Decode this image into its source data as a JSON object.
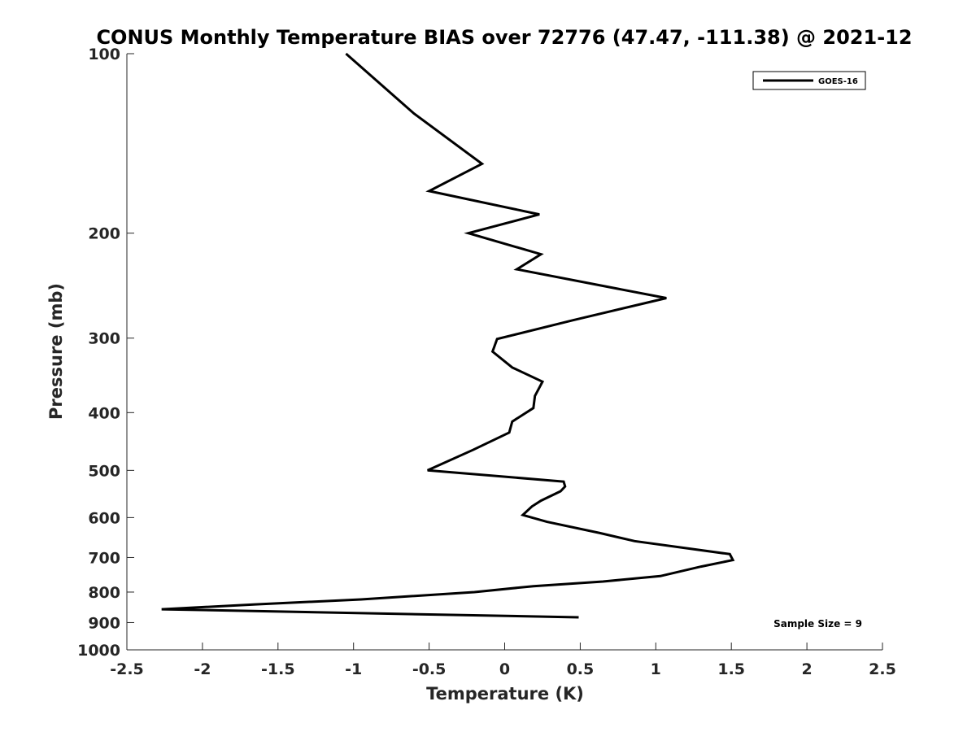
{
  "chart_data": {
    "type": "line",
    "title": "CONUS Monthly Temperature BIAS over 72776 (47.47, -111.38) @ 2021-12",
    "xlabel": "Temperature (K)",
    "ylabel": "Pressure (mb)",
    "xlim": [
      -2.5,
      2.5
    ],
    "ylim": [
      100,
      1000
    ],
    "y_scale": "log",
    "y_reversed": true,
    "x_ticks": [
      "-2.5",
      "-2",
      "-1.5",
      "-1",
      "-0.5",
      "0",
      "0.5",
      "1",
      "1.5",
      "2",
      "2.5"
    ],
    "y_ticks": [
      "100",
      "200",
      "300",
      "400",
      "500",
      "600",
      "700",
      "800",
      "900",
      "1000"
    ],
    "grid": false,
    "legend_position": "top-right",
    "annotation": "Sample Size = 9",
    "series": [
      {
        "name": "GOES-16",
        "color": "#000000",
        "x": [
          -1.05,
          -0.6,
          -0.15,
          -0.5,
          0.23,
          -0.24,
          0.24,
          0.08,
          1.07,
          0.45,
          -0.05,
          -0.08,
          0.05,
          0.25,
          0.2,
          0.19,
          0.05,
          0.03,
          -0.21,
          -0.51,
          0.39,
          0.4,
          0.37,
          0.24,
          0.18,
          0.12,
          0.28,
          0.63,
          0.86,
          1.49,
          1.51,
          1.3,
          1.03,
          0.65,
          0.19,
          -0.2,
          -0.95,
          -1.65,
          -2.27,
          0.49
        ],
        "y": [
          100,
          126,
          153,
          170,
          186,
          200,
          217,
          230,
          257,
          280,
          301,
          316,
          336,
          355,
          375,
          393,
          414,
          432,
          462,
          500,
          522,
          532,
          542,
          562,
          575,
          594,
          610,
          637,
          657,
          691,
          707,
          725,
          752,
          768,
          782,
          800,
          823,
          839,
          855,
          882
        ]
      }
    ]
  }
}
